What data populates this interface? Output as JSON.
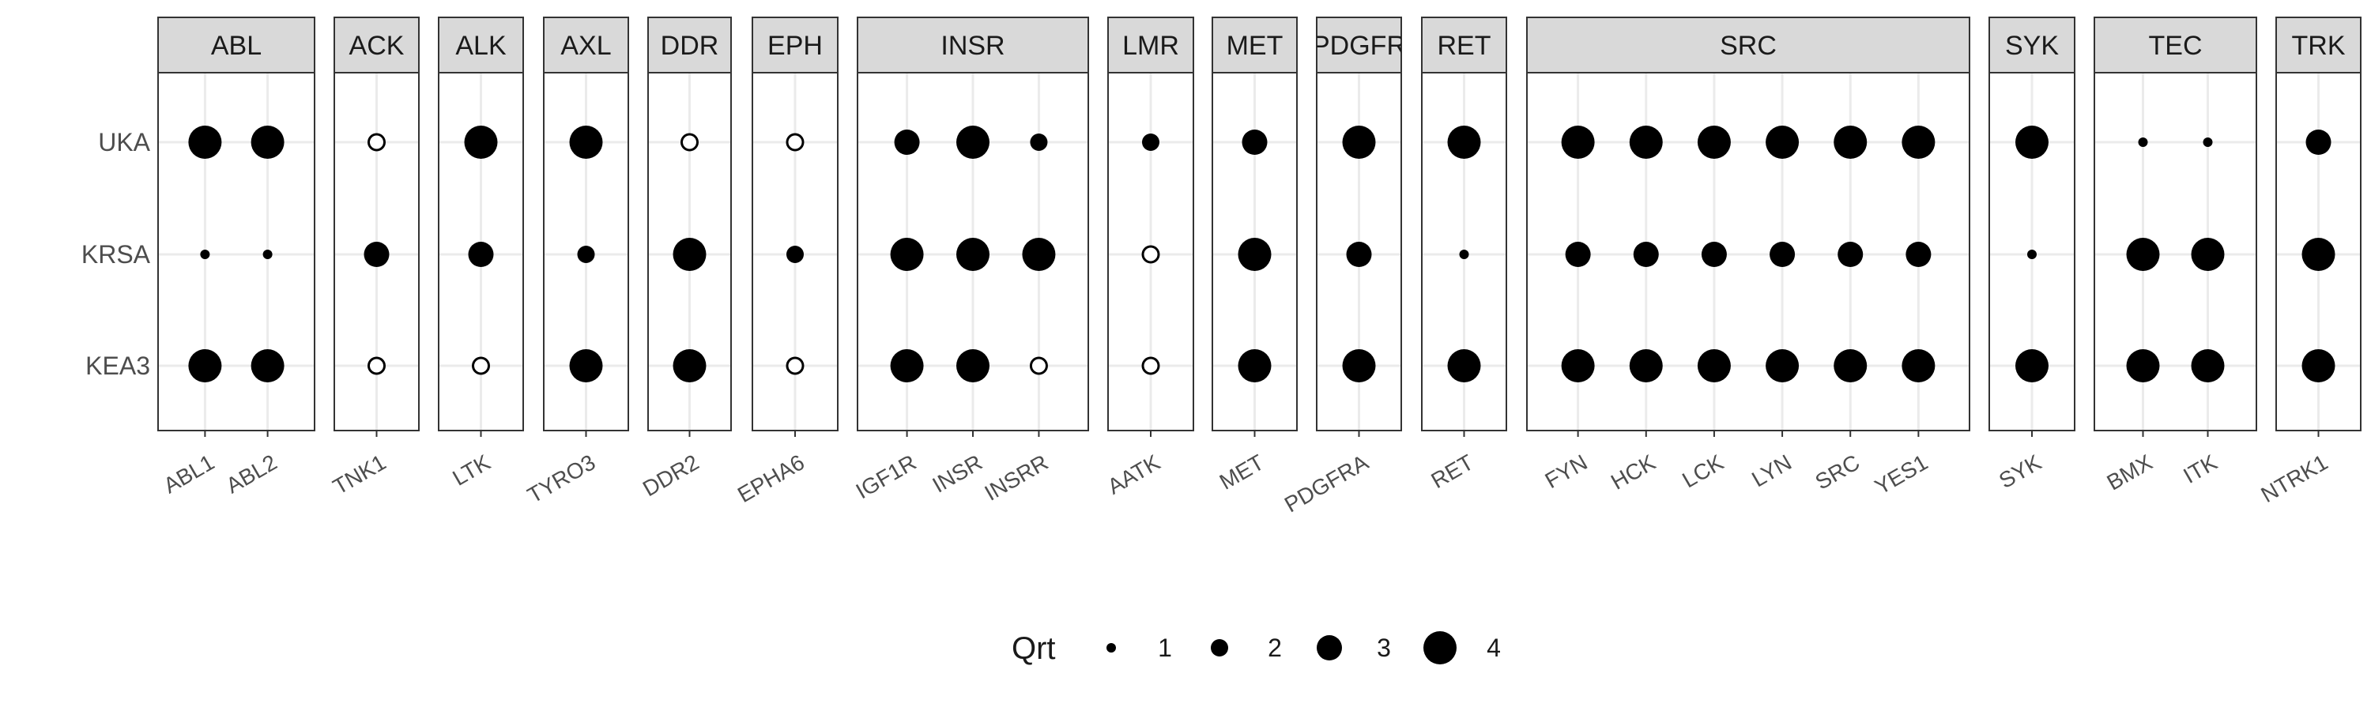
{
  "chart_data": {
    "type": "scatter",
    "title": "",
    "xlabel": "",
    "ylabel": "",
    "grid": true,
    "legend_position": "bottom",
    "y_categories": [
      "UKA",
      "KRSA",
      "KEA3"
    ],
    "facets": [
      {
        "name": "ABL",
        "kinases": [
          "ABL1",
          "ABL2"
        ]
      },
      {
        "name": "ACK",
        "kinases": [
          "TNK1"
        ]
      },
      {
        "name": "ALK",
        "kinases": [
          "LTK"
        ]
      },
      {
        "name": "AXL",
        "kinases": [
          "TYRO3"
        ]
      },
      {
        "name": "DDR",
        "kinases": [
          "DDR2"
        ]
      },
      {
        "name": "EPH",
        "kinases": [
          "EPHA6"
        ]
      },
      {
        "name": "INSR",
        "kinases": [
          "IGF1R",
          "INSR",
          "INSRR"
        ]
      },
      {
        "name": "LMR",
        "kinases": [
          "AATK"
        ]
      },
      {
        "name": "MET",
        "kinases": [
          "MET"
        ]
      },
      {
        "name": "PDGFR",
        "kinases": [
          "PDGFRA"
        ]
      },
      {
        "name": "RET",
        "kinases": [
          "RET"
        ]
      },
      {
        "name": "SRC",
        "kinases": [
          "FYN",
          "HCK",
          "LCK",
          "LYN",
          "SRC",
          "YES1"
        ]
      },
      {
        "name": "SYK",
        "kinases": [
          "SYK"
        ]
      },
      {
        "name": "TEC",
        "kinases": [
          "BMX",
          "ITK"
        ]
      },
      {
        "name": "TRK",
        "kinases": [
          "NTRK1"
        ]
      }
    ],
    "size_legend": {
      "title": "Qrt",
      "values": [
        1,
        2,
        3,
        4
      ]
    },
    "missing_marker": "open-circle",
    "points": [
      {
        "kinase": "ABL1",
        "method": "UKA",
        "qrt": 4
      },
      {
        "kinase": "ABL1",
        "method": "KRSA",
        "qrt": 1
      },
      {
        "kinase": "ABL1",
        "method": "KEA3",
        "qrt": 4
      },
      {
        "kinase": "ABL2",
        "method": "UKA",
        "qrt": 4
      },
      {
        "kinase": "ABL2",
        "method": "KRSA",
        "qrt": 1
      },
      {
        "kinase": "ABL2",
        "method": "KEA3",
        "qrt": 4
      },
      {
        "kinase": "TNK1",
        "method": "UKA",
        "qrt": null
      },
      {
        "kinase": "TNK1",
        "method": "KRSA",
        "qrt": 3
      },
      {
        "kinase": "TNK1",
        "method": "KEA3",
        "qrt": null
      },
      {
        "kinase": "LTK",
        "method": "UKA",
        "qrt": 4
      },
      {
        "kinase": "LTK",
        "method": "KRSA",
        "qrt": 3
      },
      {
        "kinase": "LTK",
        "method": "KEA3",
        "qrt": null
      },
      {
        "kinase": "TYRO3",
        "method": "UKA",
        "qrt": 4
      },
      {
        "kinase": "TYRO3",
        "method": "KRSA",
        "qrt": 2
      },
      {
        "kinase": "TYRO3",
        "method": "KEA3",
        "qrt": 4
      },
      {
        "kinase": "DDR2",
        "method": "UKA",
        "qrt": null
      },
      {
        "kinase": "DDR2",
        "method": "KRSA",
        "qrt": 4
      },
      {
        "kinase": "DDR2",
        "method": "KEA3",
        "qrt": 4
      },
      {
        "kinase": "EPHA6",
        "method": "UKA",
        "qrt": null
      },
      {
        "kinase": "EPHA6",
        "method": "KRSA",
        "qrt": 2
      },
      {
        "kinase": "EPHA6",
        "method": "KEA3",
        "qrt": null
      },
      {
        "kinase": "IGF1R",
        "method": "UKA",
        "qrt": 3
      },
      {
        "kinase": "IGF1R",
        "method": "KRSA",
        "qrt": 4
      },
      {
        "kinase": "IGF1R",
        "method": "KEA3",
        "qrt": 4
      },
      {
        "kinase": "INSR",
        "method": "UKA",
        "qrt": 4
      },
      {
        "kinase": "INSR",
        "method": "KRSA",
        "qrt": 4
      },
      {
        "kinase": "INSR",
        "method": "KEA3",
        "qrt": 4
      },
      {
        "kinase": "INSRR",
        "method": "UKA",
        "qrt": 2
      },
      {
        "kinase": "INSRR",
        "method": "KRSA",
        "qrt": 4
      },
      {
        "kinase": "INSRR",
        "method": "KEA3",
        "qrt": null
      },
      {
        "kinase": "AATK",
        "method": "UKA",
        "qrt": 2
      },
      {
        "kinase": "AATK",
        "method": "KRSA",
        "qrt": null
      },
      {
        "kinase": "AATK",
        "method": "KEA3",
        "qrt": null
      },
      {
        "kinase": "MET",
        "method": "UKA",
        "qrt": 3
      },
      {
        "kinase": "MET",
        "method": "KRSA",
        "qrt": 4
      },
      {
        "kinase": "MET",
        "method": "KEA3",
        "qrt": 4
      },
      {
        "kinase": "PDGFRA",
        "method": "UKA",
        "qrt": 4
      },
      {
        "kinase": "PDGFRA",
        "method": "KRSA",
        "qrt": 3
      },
      {
        "kinase": "PDGFRA",
        "method": "KEA3",
        "qrt": 4
      },
      {
        "kinase": "RET",
        "method": "UKA",
        "qrt": 4
      },
      {
        "kinase": "RET",
        "method": "KRSA",
        "qrt": 1
      },
      {
        "kinase": "RET",
        "method": "KEA3",
        "qrt": 4
      },
      {
        "kinase": "FYN",
        "method": "UKA",
        "qrt": 4
      },
      {
        "kinase": "FYN",
        "method": "KRSA",
        "qrt": 3
      },
      {
        "kinase": "FYN",
        "method": "KEA3",
        "qrt": 4
      },
      {
        "kinase": "HCK",
        "method": "UKA",
        "qrt": 4
      },
      {
        "kinase": "HCK",
        "method": "KRSA",
        "qrt": 3
      },
      {
        "kinase": "HCK",
        "method": "KEA3",
        "qrt": 4
      },
      {
        "kinase": "LCK",
        "method": "UKA",
        "qrt": 4
      },
      {
        "kinase": "LCK",
        "method": "KRSA",
        "qrt": 3
      },
      {
        "kinase": "LCK",
        "method": "KEA3",
        "qrt": 4
      },
      {
        "kinase": "LYN",
        "method": "UKA",
        "qrt": 4
      },
      {
        "kinase": "LYN",
        "method": "KRSA",
        "qrt": 3
      },
      {
        "kinase": "LYN",
        "method": "KEA3",
        "qrt": 4
      },
      {
        "kinase": "SRC",
        "method": "UKA",
        "qrt": 4
      },
      {
        "kinase": "SRC",
        "method": "KRSA",
        "qrt": 3
      },
      {
        "kinase": "SRC",
        "method": "KEA3",
        "qrt": 4
      },
      {
        "kinase": "YES1",
        "method": "UKA",
        "qrt": 4
      },
      {
        "kinase": "YES1",
        "method": "KRSA",
        "qrt": 3
      },
      {
        "kinase": "YES1",
        "method": "KEA3",
        "qrt": 4
      },
      {
        "kinase": "SYK",
        "method": "UKA",
        "qrt": 4
      },
      {
        "kinase": "SYK",
        "method": "KRSA",
        "qrt": 1
      },
      {
        "kinase": "SYK",
        "method": "KEA3",
        "qrt": 4
      },
      {
        "kinase": "BMX",
        "method": "UKA",
        "qrt": 1
      },
      {
        "kinase": "BMX",
        "method": "KRSA",
        "qrt": 4
      },
      {
        "kinase": "BMX",
        "method": "KEA3",
        "qrt": 4
      },
      {
        "kinase": "ITK",
        "method": "UKA",
        "qrt": 1
      },
      {
        "kinase": "ITK",
        "method": "KRSA",
        "qrt": 4
      },
      {
        "kinase": "ITK",
        "method": "KEA3",
        "qrt": 4
      },
      {
        "kinase": "NTRK1",
        "method": "UKA",
        "qrt": 3
      },
      {
        "kinase": "NTRK1",
        "method": "KRSA",
        "qrt": 4
      },
      {
        "kinase": "NTRK1",
        "method": "KEA3",
        "qrt": 4
      }
    ]
  }
}
